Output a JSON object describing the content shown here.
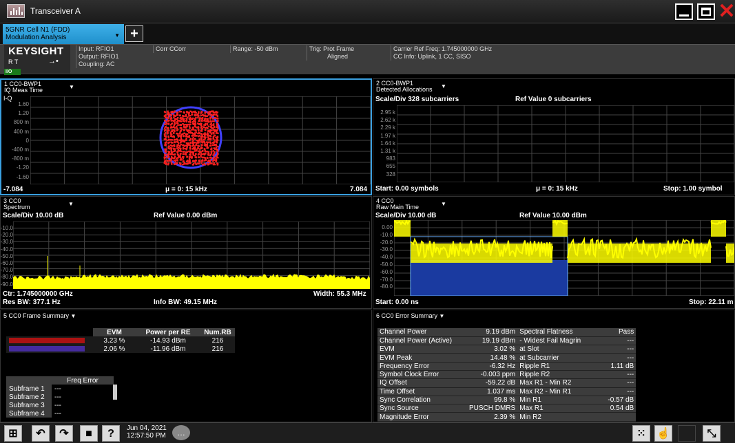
{
  "window": {
    "title": "Transceiver A"
  },
  "tabs": {
    "active_line1": "5GNR Cell N1 (FDD)",
    "active_line2": "Modulation Analysis",
    "add_label": "+"
  },
  "infobar": {
    "brand": "KEYSIGHT",
    "rt": "R  T",
    "input": "Input: RFIO1",
    "output": "Output: RFIO1",
    "coupling": "Coupling: AC",
    "corr": "Corr CCorr",
    "range": "Range: -50 dBm",
    "trig1": "Trig: Prot Frame",
    "trig2": "Aligned",
    "carrier": "Carrier Ref Freq: 1.745000000 GHz",
    "ccinfo": "CC Info: Uplink, 1 CC, SISO",
    "badge": "I/O"
  },
  "w1": {
    "id": "1 CC0-BWP1",
    "name": "IQ Meas Time",
    "ylabel": "I-Q",
    "yticks": [
      "1.60",
      "1.20",
      "800 m",
      "400 m",
      "0",
      "-400 m",
      "-800 m",
      "-1.20",
      "-1.60"
    ],
    "xmin": "-7.084",
    "center": "μ = 0: 15 kHz",
    "xmax": "7.084"
  },
  "w2": {
    "id": "2 CC0-BWP1",
    "name": "Detected Allocations",
    "scale": "Scale/Div 328 subcarriers",
    "ref": "Ref Value 0 subcarriers",
    "yticks": [
      "2.95 k",
      "2.62 k",
      "2.29 k",
      "1.97 k",
      "1.64 k",
      "1.31 k",
      "983",
      "655",
      "328"
    ],
    "start": "Start: 0.00 symbols",
    "center": "μ = 0: 15 kHz",
    "stop": "Stop: 1.00 symbol"
  },
  "w3": {
    "id": "3 CC0",
    "name": "Spectrum",
    "scale": "Scale/Div 10.00 dB",
    "ref": "Ref Value 0.00 dBm",
    "yticks": [
      "-10.0",
      "-20.0",
      "-30.0",
      "-40.0",
      "-50.0",
      "-60.0",
      "-70.0",
      "-80.0",
      "-90.0"
    ],
    "ctr": "Ctr: 1.745000000 GHz",
    "width": "Width: 55.3 MHz",
    "resbw": "Res BW: 377.1 Hz",
    "infobw": "Info BW: 49.15 MHz"
  },
  "w4": {
    "id": "4 CC0",
    "name": "Raw Main Time",
    "scale": "Scale/Div 10.00 dB",
    "ref": "Ref Value 10.00 dBm",
    "yticks": [
      "0.00",
      "-10.0",
      "-20.0",
      "-30.0",
      "-40.0",
      "-50.0",
      "-60.0",
      "-70.0",
      "-80.0"
    ],
    "start": "Start: 0.00 ns",
    "stop": "Stop: 22.11 m"
  },
  "w5": {
    "title": "5 CC0 Frame Summary",
    "headers": [
      "EVM",
      "Power per RE",
      "Num.RB"
    ],
    "rows": [
      {
        "evm": "3.23 %",
        "power": "-14.93 dBm",
        "rb": "216",
        "color": "#d01010"
      },
      {
        "evm": "2.06 %",
        "power": "-11.96 dBm",
        "rb": "216",
        "color": "#5030c0"
      }
    ],
    "freq_header": "Freq Error",
    "subframes": [
      {
        "label": "Subframe 1",
        "value": "---"
      },
      {
        "label": "Subframe 2",
        "value": "---"
      },
      {
        "label": "Subframe 3",
        "value": "---"
      },
      {
        "label": "Subframe 4",
        "value": "---"
      }
    ]
  },
  "w6": {
    "title": "6 CC0 Error Summary",
    "rows": [
      {
        "l": "Channel Power",
        "v": "9.19 dBm",
        "l2": "Spectral Flatness",
        "v2": "Pass"
      },
      {
        "l": "Channel Power (Active)",
        "v": "19.19 dBm",
        "l2": " - Widest Fail Magrin",
        "v2": "---"
      },
      {
        "l": "EVM",
        "v": "3.02 %",
        "l2": "at Slot",
        "v2": "---"
      },
      {
        "l": "EVM Peak",
        "v": "14.48 %",
        "l2": "at Subcarrier",
        "v2": "---"
      },
      {
        "l": "Frequency Error",
        "v": "-6.32 Hz",
        "l2": "Ripple R1",
        "v2": "1.11 dB"
      },
      {
        "l": "Symbol Clock Error",
        "v": "-0.003 ppm",
        "l2": "Ripple R2",
        "v2": "---"
      },
      {
        "l": "IQ Offset",
        "v": "-59.22 dB",
        "l2": "Max R1 - Min R2",
        "v2": "---"
      },
      {
        "l": "Time Offset",
        "v": "1.037 ms",
        "l2": "Max R2 - Min R1",
        "v2": "---"
      },
      {
        "l": "Sync Correlation",
        "v": "99.8 %",
        "l2": "Min R1",
        "v2": "-0.57 dB"
      },
      {
        "l": "Sync Source",
        "v": "PUSCH DMRS",
        "l2": "Max R1",
        "v2": "0.54 dB"
      },
      {
        "l": "Magnitude Error",
        "v": "2.39 %",
        "l2": "Min R2",
        "v2": ""
      }
    ]
  },
  "taskbar": {
    "date": "Jun 04, 2021",
    "time": "12:57:50 PM"
  },
  "colors": {
    "trace": "#ffff00",
    "constellation": "#ff2020",
    "circle": "#4040ff",
    "alloc": "#1a3aa0",
    "selected": "#3aa0e0"
  }
}
